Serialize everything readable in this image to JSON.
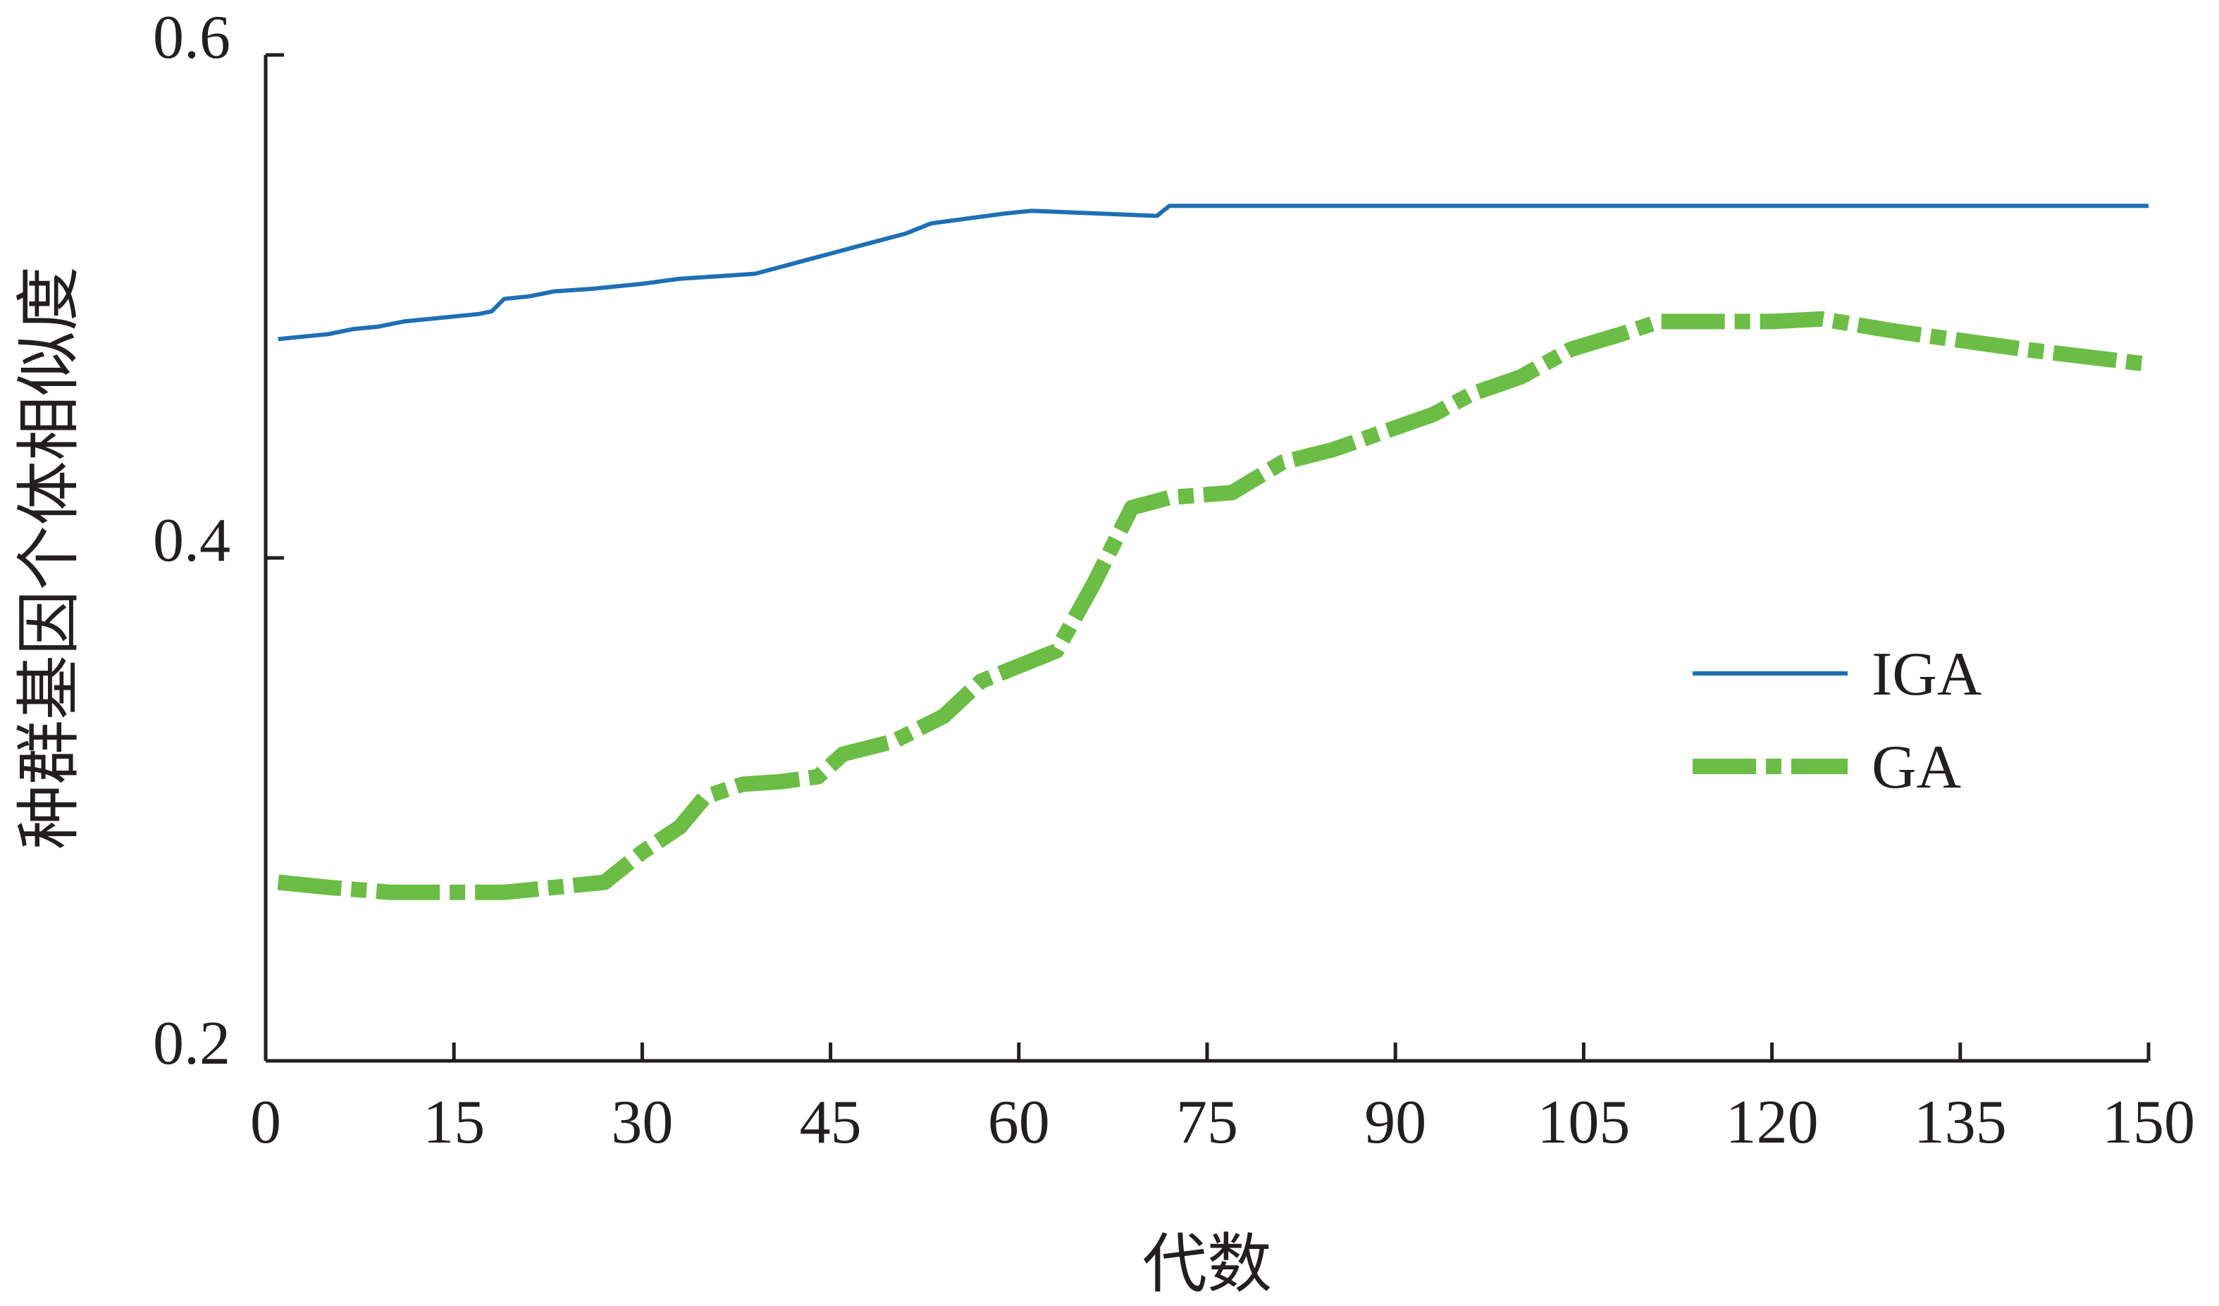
{
  "chart_data": {
    "type": "line",
    "xlabel": "代数",
    "ylabel": "种群基因个体相似度",
    "xlim": [
      0,
      150
    ],
    "ylim": [
      0.2,
      0.6
    ],
    "x_ticks": [
      "0",
      "15",
      "30",
      "45",
      "60",
      "75",
      "90",
      "105",
      "120",
      "135",
      "150"
    ],
    "y_ticks": [
      "0.2",
      "0.4",
      "0.6"
    ],
    "grid": false,
    "legend_position": "right-middle",
    "series": [
      {
        "name": "IGA",
        "color": "#1f6fb4",
        "style": "solid",
        "points": [
          [
            1,
            0.487
          ],
          [
            3,
            0.488
          ],
          [
            5,
            0.489
          ],
          [
            7,
            0.491
          ],
          [
            9,
            0.492
          ],
          [
            11,
            0.494
          ],
          [
            13,
            0.495
          ],
          [
            15,
            0.496
          ],
          [
            17,
            0.497
          ],
          [
            18,
            0.498
          ],
          [
            19,
            0.503
          ],
          [
            21,
            0.504
          ],
          [
            23,
            0.506
          ],
          [
            26,
            0.507
          ],
          [
            30,
            0.509
          ],
          [
            33,
            0.511
          ],
          [
            36,
            0.512
          ],
          [
            39,
            0.513
          ],
          [
            42,
            0.517
          ],
          [
            45,
            0.521
          ],
          [
            48,
            0.525
          ],
          [
            51,
            0.529
          ],
          [
            53,
            0.533
          ],
          [
            56,
            0.535
          ],
          [
            59,
            0.537
          ],
          [
            61,
            0.538
          ],
          [
            66,
            0.537
          ],
          [
            71,
            0.536
          ],
          [
            72,
            0.54
          ],
          [
            80,
            0.54
          ],
          [
            100,
            0.54
          ],
          [
            120,
            0.54
          ],
          [
            150,
            0.54
          ]
        ]
      },
      {
        "name": "GA",
        "color": "#6bbd45",
        "style": "dash-dot",
        "points": [
          [
            1,
            0.271
          ],
          [
            5,
            0.269
          ],
          [
            10,
            0.267
          ],
          [
            14,
            0.267
          ],
          [
            19,
            0.267
          ],
          [
            23,
            0.269
          ],
          [
            27,
            0.271
          ],
          [
            30,
            0.283
          ],
          [
            33,
            0.293
          ],
          [
            35,
            0.305
          ],
          [
            38,
            0.31
          ],
          [
            41,
            0.311
          ],
          [
            44,
            0.313
          ],
          [
            46,
            0.322
          ],
          [
            50,
            0.327
          ],
          [
            54,
            0.337
          ],
          [
            57,
            0.351
          ],
          [
            60,
            0.357
          ],
          [
            63,
            0.363
          ],
          [
            66,
            0.39
          ],
          [
            69,
            0.42
          ],
          [
            72,
            0.424
          ],
          [
            77,
            0.426
          ],
          [
            81,
            0.438
          ],
          [
            85,
            0.443
          ],
          [
            89,
            0.45
          ],
          [
            93,
            0.457
          ],
          [
            96,
            0.465
          ],
          [
            100,
            0.472
          ],
          [
            104,
            0.483
          ],
          [
            108,
            0.489
          ],
          [
            111,
            0.494
          ],
          [
            116,
            0.494
          ],
          [
            120,
            0.494
          ],
          [
            124,
            0.495
          ],
          [
            130,
            0.49
          ],
          [
            140,
            0.483
          ],
          [
            150,
            0.477
          ]
        ]
      }
    ]
  }
}
